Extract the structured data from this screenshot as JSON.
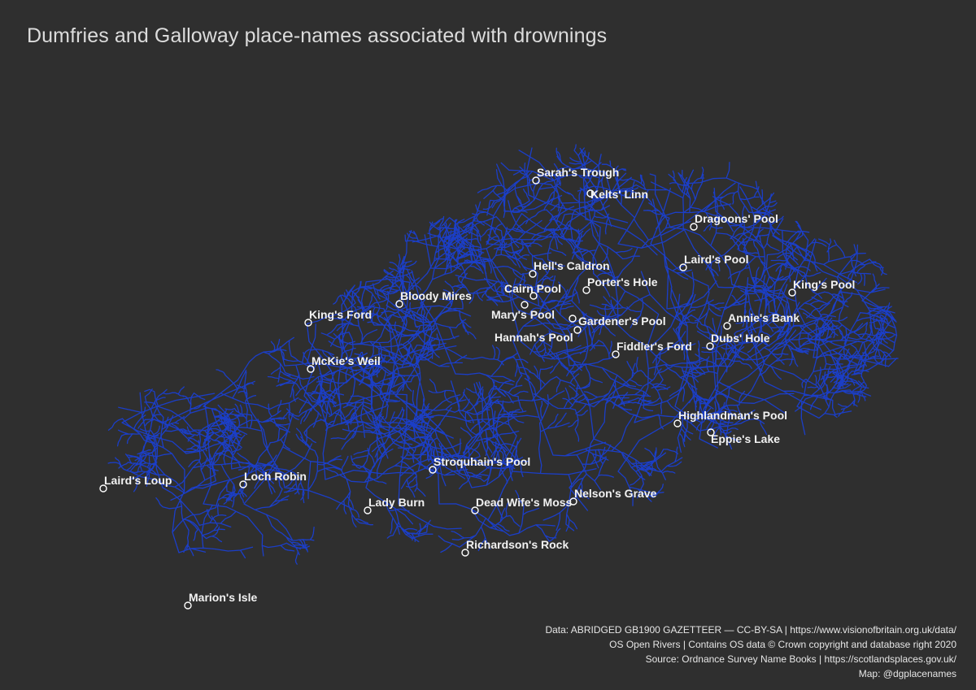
{
  "title": "Dumfries and Galloway place-names associated with drownings",
  "places": [
    {
      "name": "Sarah's Trough"
    },
    {
      "name": "Kelts' Linn"
    },
    {
      "name": "Dragoons' Pool"
    },
    {
      "name": "Laird's Pool"
    },
    {
      "name": "Hell's Caldron"
    },
    {
      "name": "Porter's Hole"
    },
    {
      "name": "Cairn Pool"
    },
    {
      "name": "King's Pool"
    },
    {
      "name": "Bloody Mires"
    },
    {
      "name": "Mary's Pool"
    },
    {
      "name": "Annie's Bank"
    },
    {
      "name": "King's Ford"
    },
    {
      "name": "Gardener's Pool"
    },
    {
      "name": "Hannah's Pool"
    },
    {
      "name": "Dubs' Hole"
    },
    {
      "name": "Fiddler's Ford"
    },
    {
      "name": "McKie's Weil"
    },
    {
      "name": "Highlandman's Pool"
    },
    {
      "name": "Eppie's Lake"
    },
    {
      "name": "Stroquhain's Pool"
    },
    {
      "name": "Laird's Loup"
    },
    {
      "name": "Loch Robin"
    },
    {
      "name": "Nelson's Grave"
    },
    {
      "name": "Lady Burn"
    },
    {
      "name": "Dead Wife's Moss"
    },
    {
      "name": "Richardson's Rock"
    },
    {
      "name": "Marion's Isle"
    }
  ],
  "river_color": "#1a3fd0",
  "background_color": "#2f2f2f",
  "credits": {
    "line1": "Data: ABRIDGED GB1900 GAZETTEER — CC-BY-SA | https://www.visionofbritain.org.uk/data/",
    "line2": "OS Open Rivers | Contains OS data © Crown copyright and database right 2020",
    "line3": "Source: Ordnance Survey Name Books | https://scotlandsplaces.gov.uk/",
    "line4": "Map: @dgplacenames"
  }
}
